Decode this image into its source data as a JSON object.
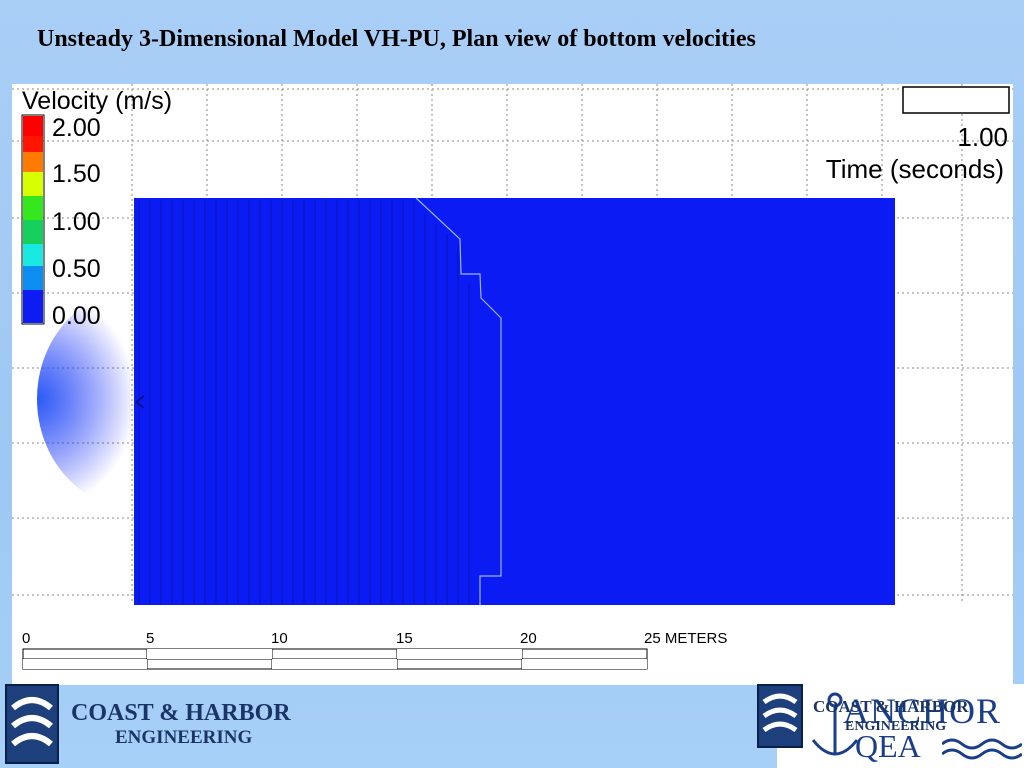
{
  "slide": {
    "title": "Unsteady 3-Dimensional Model VH-PU, Plan view of bottom velocities"
  },
  "legend": {
    "title": "Velocity (m/s)",
    "labels": [
      "2.00",
      "1.50",
      "1.00",
      "0.50",
      "0.00"
    ],
    "swatch_colors": [
      "#ff0000",
      "#ff7b00",
      "#d8ff00",
      "#35e81e",
      "#19e9e0",
      "#0b8df2",
      "#0e1cf4"
    ]
  },
  "time_display": {
    "value": "1.00",
    "label": "Time (seconds)"
  },
  "scale_bar": {
    "ticks": [
      "0",
      "5",
      "10",
      "15",
      "20"
    ],
    "end_label": "25 METERS"
  },
  "colors": {
    "field_blue": "#0b1bf3",
    "grid_dotted": "#8a8a8a"
  },
  "logo_left": {
    "line1": "COAST & HARBOR",
    "line2": "ENGINEERING"
  },
  "logo_right": {
    "line1": "COAST & HARBOR",
    "line2": "ENGINEERING",
    "brand1": "ANCHOR",
    "brand2": "QEA"
  }
}
